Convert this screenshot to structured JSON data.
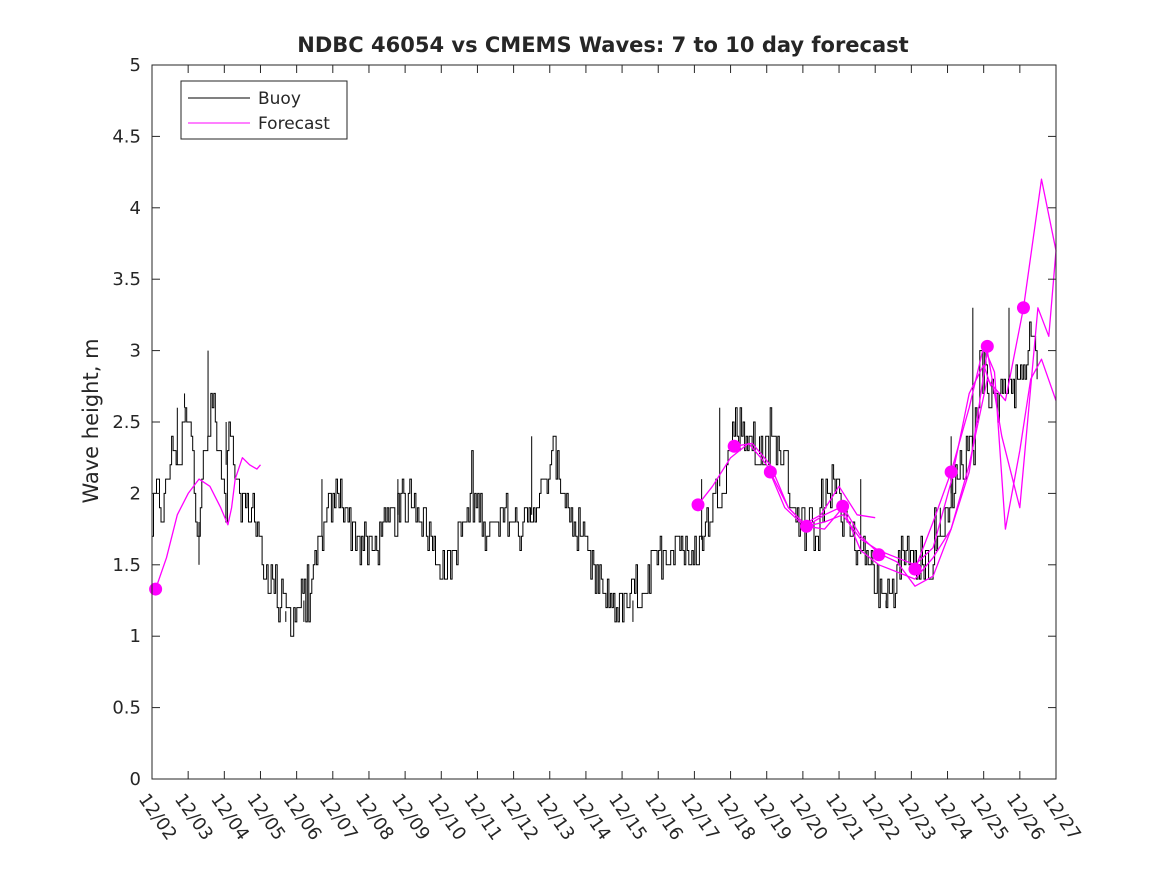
{
  "chart_data": {
    "type": "line",
    "title": "NDBC 46054 vs CMEMS Waves: 7 to 10 day forecast",
    "xlabel": "",
    "ylabel": "Wave height, m",
    "ylim": [
      0,
      5
    ],
    "yticks": [
      "0",
      "0.5",
      "1",
      "1.5",
      "2",
      "2.5",
      "3",
      "3.5",
      "4",
      "4.5",
      "5"
    ],
    "xlim": [
      0,
      25
    ],
    "xunit": "days since 12/02",
    "xticks": [
      "12/02",
      "12/03",
      "12/04",
      "12/05",
      "12/06",
      "12/07",
      "12/08",
      "12/09",
      "12/10",
      "12/11",
      "12/12",
      "12/13",
      "12/14",
      "12/15",
      "12/16",
      "12/17",
      "12/18",
      "12/19",
      "12/20",
      "12/21",
      "12/22",
      "12/23",
      "12/24",
      "12/25",
      "12/26",
      "12/27"
    ],
    "legend": {
      "position": "top-left",
      "entries": [
        {
          "name": "Buoy",
          "color": "#000000"
        },
        {
          "name": "Forecast",
          "color": "#ff00ff"
        }
      ]
    },
    "buoy_anchor": [
      [
        0.0,
        1.7
      ],
      [
        0.1,
        2.0
      ],
      [
        0.3,
        1.9
      ],
      [
        0.5,
        2.2
      ],
      [
        0.6,
        2.4
      ],
      [
        0.75,
        2.1
      ],
      [
        0.9,
        2.6
      ],
      [
        1.0,
        2.4
      ],
      [
        1.1,
        2.5
      ],
      [
        1.2,
        1.9
      ],
      [
        1.3,
        1.8
      ],
      [
        1.4,
        2.2
      ],
      [
        1.5,
        2.3
      ],
      [
        1.6,
        2.5
      ],
      [
        1.7,
        2.7
      ],
      [
        1.8,
        2.3
      ],
      [
        1.9,
        2.2
      ],
      [
        2.0,
        2.0
      ],
      [
        2.1,
        2.4
      ],
      [
        2.2,
        2.3
      ],
      [
        2.3,
        2.1
      ],
      [
        2.4,
        1.9
      ],
      [
        2.5,
        2.0
      ],
      [
        2.6,
        1.9
      ],
      [
        2.8,
        1.9
      ],
      [
        3.0,
        1.6
      ],
      [
        3.2,
        1.4
      ],
      [
        3.4,
        1.35
      ],
      [
        3.6,
        1.2
      ],
      [
        3.8,
        1.15
      ],
      [
        4.0,
        1.2
      ],
      [
        4.2,
        1.25
      ],
      [
        4.4,
        1.3
      ],
      [
        4.6,
        1.6
      ],
      [
        4.8,
        1.8
      ],
      [
        5.0,
        1.9
      ],
      [
        5.2,
        2.0
      ],
      [
        5.4,
        1.85
      ],
      [
        5.6,
        1.7
      ],
      [
        5.8,
        1.65
      ],
      [
        6.0,
        1.6
      ],
      [
        6.2,
        1.65
      ],
      [
        6.4,
        1.75
      ],
      [
        6.6,
        1.8
      ],
      [
        6.8,
        1.85
      ],
      [
        7.0,
        1.9
      ],
      [
        7.2,
        2.0
      ],
      [
        7.4,
        1.9
      ],
      [
        7.6,
        1.75
      ],
      [
        7.8,
        1.6
      ],
      [
        8.0,
        1.5
      ],
      [
        8.2,
        1.5
      ],
      [
        8.4,
        1.6
      ],
      [
        8.6,
        1.75
      ],
      [
        8.8,
        1.9
      ],
      [
        9.0,
        1.95
      ],
      [
        9.2,
        1.8
      ],
      [
        9.4,
        1.7
      ],
      [
        9.6,
        1.75
      ],
      [
        9.8,
        1.85
      ],
      [
        10.0,
        1.8
      ],
      [
        10.2,
        1.7
      ],
      [
        10.4,
        1.8
      ],
      [
        10.6,
        1.9
      ],
      [
        10.8,
        2.0
      ],
      [
        11.0,
        2.1
      ],
      [
        11.1,
        2.3
      ],
      [
        11.2,
        2.2
      ],
      [
        11.3,
        2.1
      ],
      [
        11.5,
        1.9
      ],
      [
        11.7,
        1.75
      ],
      [
        11.9,
        1.6
      ],
      [
        12.1,
        1.5
      ],
      [
        12.3,
        1.4
      ],
      [
        12.5,
        1.3
      ],
      [
        12.7,
        1.25
      ],
      [
        12.9,
        1.2
      ],
      [
        13.1,
        1.2
      ],
      [
        13.3,
        1.25
      ],
      [
        13.5,
        1.3
      ],
      [
        13.7,
        1.4
      ],
      [
        13.9,
        1.5
      ],
      [
        14.1,
        1.55
      ],
      [
        14.3,
        1.6
      ],
      [
        14.5,
        1.7
      ],
      [
        14.7,
        1.6
      ],
      [
        14.9,
        1.5
      ],
      [
        15.1,
        1.6
      ],
      [
        15.3,
        1.75
      ],
      [
        15.5,
        1.9
      ],
      [
        15.7,
        2.05
      ],
      [
        15.9,
        2.2
      ],
      [
        16.0,
        2.4
      ],
      [
        16.1,
        2.5
      ],
      [
        16.3,
        2.45
      ],
      [
        16.5,
        2.4
      ],
      [
        16.7,
        2.3
      ],
      [
        16.9,
        2.25
      ],
      [
        17.1,
        2.3
      ],
      [
        17.3,
        2.35
      ],
      [
        17.5,
        2.2
      ],
      [
        17.7,
        1.95
      ],
      [
        17.9,
        1.8
      ],
      [
        18.1,
        1.75
      ],
      [
        18.3,
        1.75
      ],
      [
        18.5,
        1.85
      ],
      [
        18.7,
        2.0
      ],
      [
        18.9,
        2.1
      ],
      [
        19.1,
        1.9
      ],
      [
        19.3,
        1.7
      ],
      [
        19.5,
        1.6
      ],
      [
        19.7,
        1.55
      ],
      [
        19.9,
        1.5
      ],
      [
        20.1,
        1.3
      ],
      [
        20.3,
        1.25
      ],
      [
        20.5,
        1.4
      ],
      [
        20.7,
        1.55
      ],
      [
        20.9,
        1.65
      ],
      [
        21.1,
        1.6
      ],
      [
        21.3,
        1.55
      ],
      [
        21.5,
        1.5
      ],
      [
        21.7,
        1.6
      ],
      [
        21.9,
        1.8
      ],
      [
        22.1,
        2.0
      ],
      [
        22.3,
        2.15
      ],
      [
        22.5,
        2.25
      ],
      [
        22.7,
        2.3
      ],
      [
        22.8,
        2.55
      ],
      [
        22.9,
        2.9
      ],
      [
        23.0,
        2.85
      ],
      [
        23.2,
        2.75
      ],
      [
        23.4,
        2.6
      ],
      [
        23.6,
        2.8
      ],
      [
        23.8,
        2.75
      ],
      [
        24.0,
        2.8
      ],
      [
        24.2,
        2.95
      ],
      [
        24.3,
        3.1
      ],
      [
        24.4,
        3.0
      ],
      [
        24.5,
        2.9
      ]
    ],
    "buoy_spikes": [
      [
        0.7,
        2.6
      ],
      [
        0.9,
        2.7
      ],
      [
        1.3,
        1.5
      ],
      [
        1.7,
        2.7
      ],
      [
        1.55,
        3.0
      ],
      [
        2.05,
        2.5
      ],
      [
        3.7,
        1.1
      ],
      [
        4.2,
        1.1
      ],
      [
        4.7,
        2.1
      ],
      [
        6.8,
        2.1
      ],
      [
        10.5,
        2.4
      ],
      [
        13.3,
        1.1
      ],
      [
        15.2,
        2.1
      ],
      [
        15.7,
        2.6
      ],
      [
        16.8,
        2.4
      ],
      [
        19.6,
        2.1
      ],
      [
        20.3,
        1.2
      ],
      [
        21.8,
        1.9
      ],
      [
        22.1,
        2.4
      ],
      [
        22.7,
        3.3
      ],
      [
        23.7,
        3.3
      ]
    ],
    "forecasts": [
      {
        "x": [
          0.1,
          0.4,
          0.7,
          1.0,
          1.3,
          1.6,
          1.9,
          2.1,
          2.2,
          2.3,
          2.5,
          2.7,
          2.9,
          3.0
        ],
        "y": [
          1.33,
          1.55,
          1.85,
          2.0,
          2.1,
          2.05,
          1.9,
          1.78,
          1.9,
          2.1,
          2.25,
          2.2,
          2.17,
          2.2
        ]
      },
      {
        "x": [
          15.1,
          15.5,
          16.0,
          16.5,
          17.0,
          17.5,
          18.0,
          18.5,
          19.0,
          19.5,
          20.0
        ],
        "y": [
          1.92,
          2.05,
          2.25,
          2.35,
          2.2,
          1.9,
          1.78,
          1.85,
          2.05,
          1.85,
          1.83
        ]
      },
      {
        "x": [
          16.1,
          16.6,
          17.1,
          17.6,
          18.1,
          18.6,
          19.1,
          19.6,
          20.1,
          20.6,
          21.1,
          21.6,
          22.1,
          22.6,
          23.0,
          23.2
        ],
        "y": [
          2.33,
          2.35,
          2.2,
          1.9,
          1.77,
          1.8,
          1.85,
          1.68,
          1.6,
          1.55,
          1.5,
          1.62,
          2.08,
          2.7,
          2.9,
          2.75
        ]
      },
      {
        "x": [
          17.1,
          17.6,
          18.1,
          18.6,
          19.1,
          19.6,
          20.1,
          20.6,
          21.1,
          21.6,
          22.1,
          22.6,
          23.1,
          23.5,
          24.0,
          24.5,
          24.8,
          25.0
        ],
        "y": [
          2.15,
          1.9,
          1.77,
          1.75,
          1.9,
          1.6,
          1.5,
          1.45,
          1.4,
          1.55,
          1.75,
          2.15,
          3.0,
          2.4,
          1.9,
          3.3,
          3.1,
          3.7
        ]
      },
      {
        "x": [
          18.1,
          18.6,
          19.1,
          19.6,
          20.1,
          20.6,
          21.1,
          21.6,
          22.1,
          22.6,
          23.1,
          23.6,
          24.1,
          24.6,
          25.0
        ],
        "y": [
          1.77,
          1.85,
          1.91,
          1.7,
          1.58,
          1.52,
          1.35,
          1.42,
          1.75,
          2.2,
          2.8,
          2.65,
          3.3,
          4.2,
          3.7
        ]
      },
      {
        "x": [
          21.1,
          21.6,
          22.1,
          22.6,
          23.0,
          23.3,
          23.6,
          24.0,
          24.3,
          24.6,
          25.0
        ],
        "y": [
          1.47,
          1.8,
          2.15,
          2.6,
          3.03,
          2.85,
          1.75,
          2.3,
          2.8,
          2.94,
          2.65
        ]
      }
    ],
    "forecast_markers": [
      [
        0.1,
        1.33
      ],
      [
        15.1,
        1.92
      ],
      [
        16.1,
        2.33
      ],
      [
        17.1,
        2.15
      ],
      [
        18.1,
        1.77
      ],
      [
        19.1,
        1.91
      ],
      [
        20.1,
        1.57
      ],
      [
        21.1,
        1.47
      ],
      [
        22.1,
        2.15
      ],
      [
        23.1,
        3.03
      ],
      [
        24.1,
        3.3
      ]
    ]
  }
}
